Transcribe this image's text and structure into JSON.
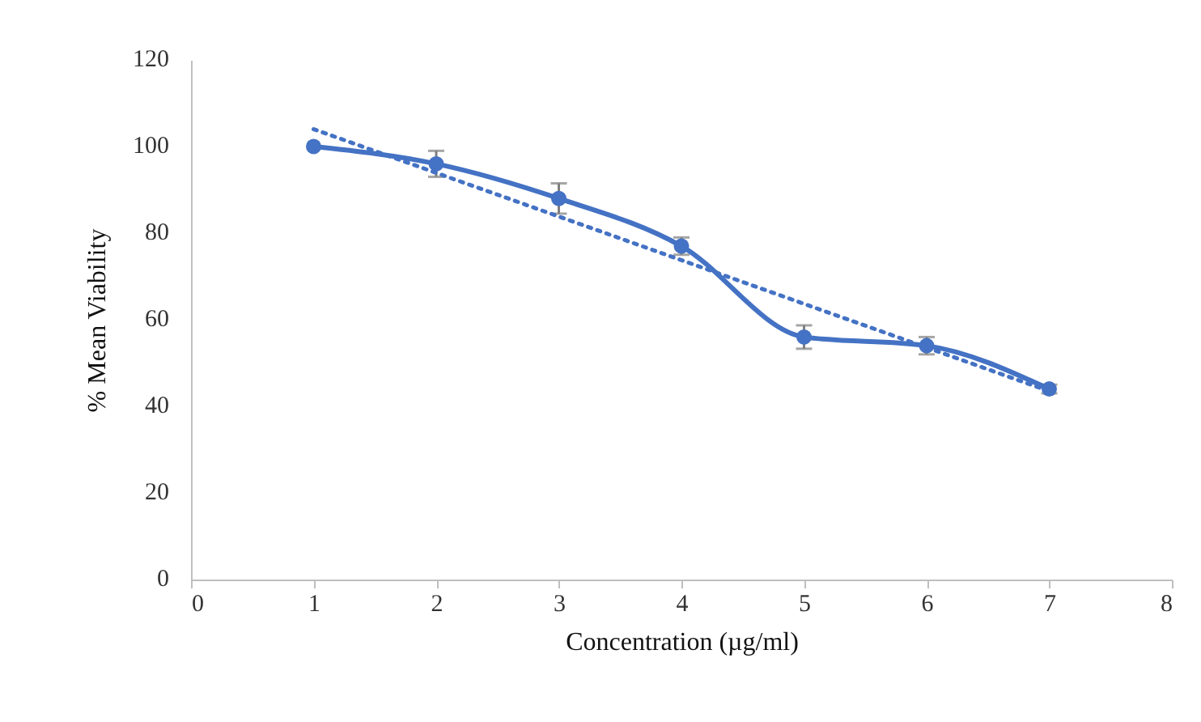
{
  "chart_data": {
    "type": "line",
    "xlabel": "Concentration (µg/ml)",
    "ylabel": "% Mean Viability",
    "xlim": [
      0,
      8
    ],
    "xticks": [
      0,
      1,
      2,
      3,
      4,
      5,
      6,
      7,
      8
    ],
    "ylim": [
      0,
      120
    ],
    "yticks": [
      0,
      20,
      40,
      60,
      80,
      100,
      120
    ],
    "grid": false,
    "marker": "circle",
    "line_style": "solid",
    "series": [
      {
        "color": "#4472c4",
        "x": [
          1,
          2,
          3,
          4,
          5,
          6,
          7
        ],
        "values": [
          100,
          96,
          88,
          77,
          56,
          54,
          44
        ],
        "errors": [
          null,
          3,
          3.5,
          2,
          2.7,
          2,
          1
        ]
      },
      {
        "color": "#4472c4",
        "x": [
          1,
          7
        ],
        "values": [
          104,
          43.5
        ],
        "line_style": "dotted",
        "marker": "none"
      }
    ]
  }
}
